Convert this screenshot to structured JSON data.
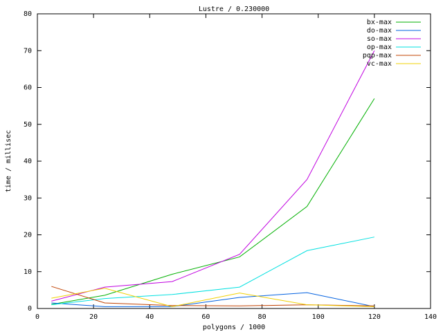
{
  "chart_data": {
    "type": "line",
    "title": "Lustre / 0.230000",
    "x_label": "polygons / 1000",
    "y_label": "time / millisec",
    "x": [
      5,
      24,
      48,
      72,
      96,
      120
    ],
    "series": [
      {
        "name": "bx-max",
        "color": "#00b000",
        "values": [
          1.1,
          3.6,
          9.3,
          14,
          27.7,
          57
        ]
      },
      {
        "name": "do-max",
        "color": "#0060e0",
        "values": [
          1.5,
          0.5,
          0.5,
          3,
          4.3,
          0.5
        ]
      },
      {
        "name": "so-max",
        "color": "#c000e0",
        "values": [
          2,
          5.8,
          7.3,
          14.7,
          35,
          70
        ]
      },
      {
        "name": "op-max",
        "color": "#00e0e0",
        "values": [
          1,
          2.7,
          3.8,
          5.8,
          15.7,
          19.4
        ]
      },
      {
        "name": "pqp-max",
        "color": "#c04000",
        "values": [
          6,
          1.5,
          0.8,
          0.7,
          1,
          0.7
        ]
      },
      {
        "name": "vc-max",
        "color": "#f0d000",
        "values": [
          2.8,
          5.5,
          0.5,
          4.2,
          1,
          0.5
        ]
      }
    ],
    "xlim": [
      0,
      140
    ],
    "xticks": [
      0,
      20,
      40,
      60,
      80,
      100,
      120,
      140
    ],
    "ylim": [
      0,
      80
    ],
    "yticks": [
      0,
      10,
      20,
      30,
      40,
      50,
      60,
      70,
      80
    ],
    "legend": "top-right"
  }
}
